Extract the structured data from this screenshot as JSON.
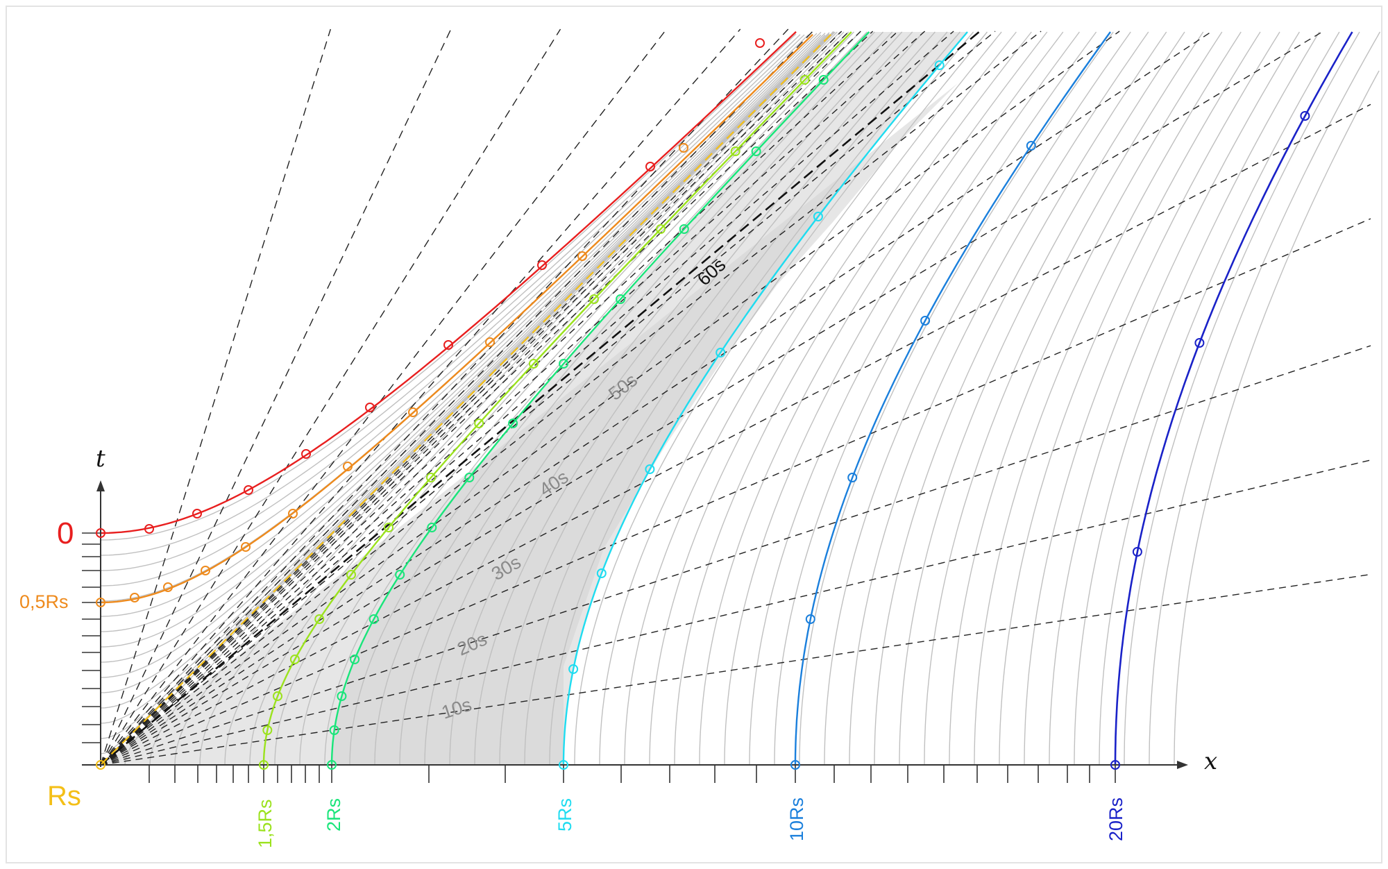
{
  "axes": {
    "x_label": "x",
    "t_label": "t"
  },
  "left_labels": {
    "zero": "0",
    "half": "0,5Rs",
    "rs": "Rs"
  },
  "bottom_labels": [
    {
      "text": "1,5Rs",
      "color": "#9be21d"
    },
    {
      "text": "2Rs",
      "color": "#19e57a"
    },
    {
      "text": "5Rs",
      "color": "#1fdcf0"
    },
    {
      "text": "10Rs",
      "color": "#1a7fdc"
    },
    {
      "text": "20Rs",
      "color": "#1a22c8"
    }
  ],
  "time_labels": [
    "10s",
    "20s",
    "30s",
    "40s",
    "50s",
    "60s"
  ],
  "colors": {
    "zero": "#e81f1f",
    "half": "#ee8a1c",
    "rs": "#f4bf17",
    "r15": "#9be21d",
    "r2": "#19e57a",
    "r5": "#1fdcf0",
    "r10": "#1a7fdc",
    "r20": "#1a22c8",
    "grid": "#c0c0c0",
    "shade_dark": "#d2d2d2",
    "shade_light": "#e6e6e6",
    "time_gray": "#8a8a8a"
  }
}
